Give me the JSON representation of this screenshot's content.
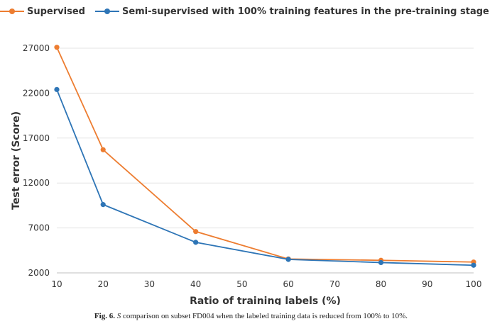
{
  "chart_data": {
    "type": "line",
    "x": [
      10,
      20,
      40,
      60,
      80,
      100
    ],
    "series": [
      {
        "name": "Supervised",
        "color": "#ED7D31",
        "values": [
          27100,
          15700,
          6600,
          3550,
          3400,
          3200
        ]
      },
      {
        "name": "Semi-supervised with 100% training features in the pre-training stage",
        "color": "#2E75B6",
        "values": [
          22400,
          9600,
          5400,
          3500,
          3150,
          2850
        ]
      }
    ],
    "xlabel": "Ratio of training labels (%)",
    "ylabel": "Test error (Score)",
    "xlim": [
      10,
      100
    ],
    "ylim": [
      2000,
      27000
    ],
    "xticks": [
      "10",
      "20",
      "30",
      "40",
      "50",
      "60",
      "70",
      "80",
      "90",
      "100"
    ],
    "yticks": [
      "2000",
      "7000",
      "12000",
      "17000",
      "22000",
      "27000"
    ],
    "grid": true,
    "legend_position": "top-left"
  },
  "caption": {
    "label": "Fig. 6.",
    "symbol": "S",
    "text": "comparison on subset FD004 when the labeled training data is reduced from 100% to 10%."
  }
}
